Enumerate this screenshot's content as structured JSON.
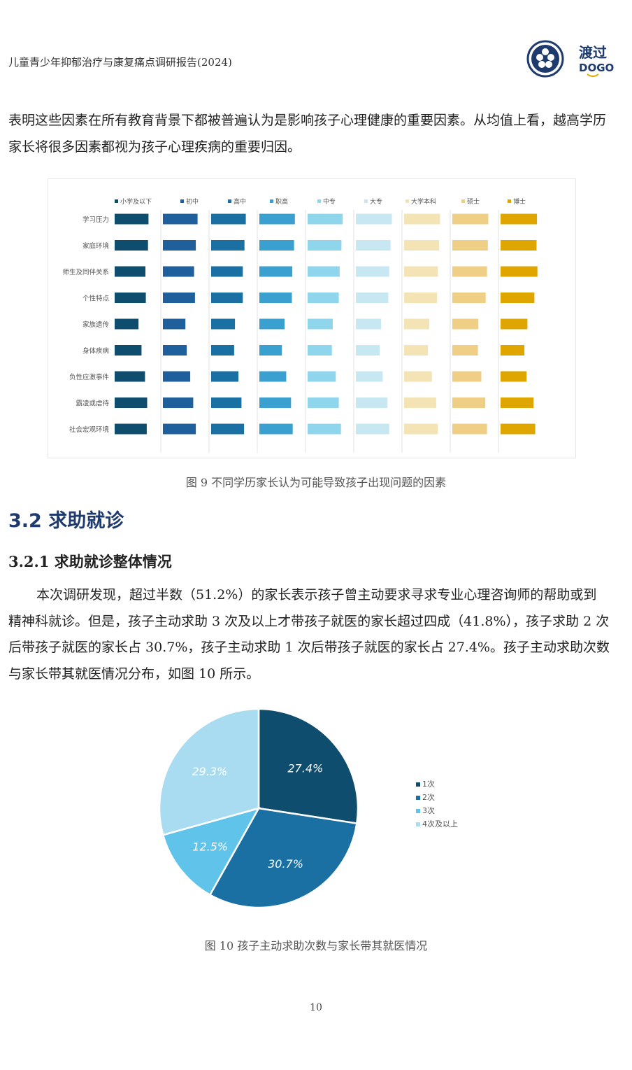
{
  "header": {
    "title": "儿童青少年抑郁治疗与康复痛点调研报告(2024)",
    "logo_text": "渡过",
    "logo_subtext": "DOGO"
  },
  "paragraphs": {
    "p1": "表明这些因素在所有教育背景下都被普遍认为是影响孩子心理健康的重要因素。从均值上看，越高学历家长将很多因素都视为孩子心理疾病的重要归因。",
    "p2": "本次调研发现，超过半数（51.2%）的家长表示孩子曾主动要求寻求专业心理咨询师的帮助或到精神科就诊。但是，孩子主动求助 3 次及以上才带孩子就医的家长超过四成（41.8%），孩子求助 2 次后带孩子就医的家长占 30.7%，孩子主动求助 1 次后带孩子就医的家长占 27.4%。孩子主动求助次数与家长带其就医情况分布，如图 10 所示。"
  },
  "captions": {
    "fig9": "图 9 不同学历家长认为可能导致孩子出现问题的因素",
    "fig10": "图 10 孩子主动求助次数与家长带其就医情况"
  },
  "headings": {
    "section": "3.2 求助就诊",
    "subsection": "3.2.1 求助就诊整体情况"
  },
  "page_number": "10",
  "colors": {
    "heading_blue": "#1f3b6e",
    "edu": [
      "#0e4d6e",
      "#1f5f9b",
      "#1a6fa3",
      "#3aa0cf",
      "#8fd6ec",
      "#c7e7f3",
      "#f3e3b5",
      "#efcf85",
      "#dfa600"
    ],
    "pie": [
      "#0e4d6e",
      "#1a6fa3",
      "#5fc3ea",
      "#a9dcf0"
    ]
  },
  "chart_data": [
    {
      "type": "bar",
      "title": "",
      "series": [
        {
          "name": "小学及以下",
          "values": [
            0.78,
            0.77,
            0.71,
            0.72,
            0.55,
            0.62,
            0.7,
            0.75,
            0.74
          ]
        },
        {
          "name": "初中",
          "values": [
            0.8,
            0.76,
            0.72,
            0.74,
            0.52,
            0.55,
            0.63,
            0.7,
            0.76
          ]
        },
        {
          "name": "高中",
          "values": [
            0.8,
            0.77,
            0.73,
            0.73,
            0.55,
            0.53,
            0.63,
            0.7,
            0.76
          ]
        },
        {
          "name": "职高",
          "values": [
            0.82,
            0.8,
            0.76,
            0.75,
            0.58,
            0.52,
            0.62,
            0.73,
            0.77
          ]
        },
        {
          "name": "中专",
          "values": [
            0.81,
            0.78,
            0.74,
            0.72,
            0.58,
            0.56,
            0.65,
            0.72,
            0.77
          ]
        },
        {
          "name": "大专",
          "values": [
            0.83,
            0.8,
            0.77,
            0.75,
            0.58,
            0.55,
            0.62,
            0.73,
            0.77
          ]
        },
        {
          "name": "大学本科",
          "values": [
            0.83,
            0.81,
            0.78,
            0.76,
            0.58,
            0.55,
            0.64,
            0.74,
            0.78
          ]
        },
        {
          "name": "硕士",
          "values": [
            0.83,
            0.82,
            0.8,
            0.77,
            0.6,
            0.59,
            0.67,
            0.76,
            0.8
          ]
        },
        {
          "name": "博士",
          "values": [
            0.84,
            0.83,
            0.85,
            0.78,
            0.62,
            0.55,
            0.6,
            0.76,
            0.8
          ]
        }
      ],
      "categories": [
        "学习压力",
        "家庭环境",
        "师生及同伴关系",
        "个性特点",
        "家族遗传",
        "身体疾病",
        "负性应激事件",
        "霸凌或虐待",
        "社会宏观环境"
      ],
      "legend": "top"
    },
    {
      "type": "pie",
      "labels": [
        "1次",
        "2次",
        "3次",
        "4次及以上"
      ],
      "values": [
        27.4,
        30.7,
        12.5,
        29.3
      ],
      "value_labels": [
        "27.4%",
        "30.7%",
        "12.5%",
        "29.3%"
      ],
      "legend": "right"
    }
  ]
}
